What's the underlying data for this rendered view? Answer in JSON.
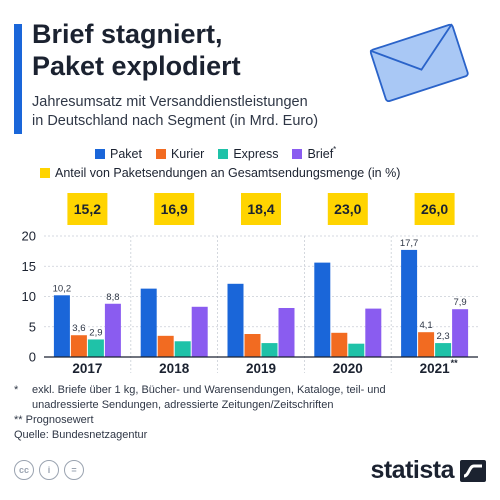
{
  "header": {
    "title_line1": "Brief stagniert,",
    "title_line2": "Paket explodiert",
    "subtitle_line1": "Jahresumsatz mit Versanddienstleistungen",
    "subtitle_line2": "in Deutschland nach Segment (in Mrd. Euro)"
  },
  "legend": {
    "items": [
      {
        "label": "Paket",
        "color": "#1a66d9"
      },
      {
        "label": "Kurier",
        "color": "#f26b21"
      },
      {
        "label": "Express",
        "color": "#1fc2a8"
      },
      {
        "label": "Brief",
        "sup": "*",
        "color": "#8a5cf0"
      }
    ],
    "share_label": "Anteil von Paketsendungen an Gesamtsendungsmenge (in %)",
    "share_color": "#ffd400"
  },
  "chart_data": {
    "type": "bar",
    "categories": [
      "2017",
      "2018",
      "2019",
      "2020",
      "2021"
    ],
    "category_marks": [
      "",
      "",
      "",
      "",
      "**"
    ],
    "series": [
      {
        "name": "Paket",
        "color": "#1a66d9",
        "values": [
          10.2,
          11.3,
          12.1,
          15.6,
          17.7
        ],
        "labels": [
          "10,2",
          "",
          "",
          "",
          "17,7"
        ]
      },
      {
        "name": "Kurier",
        "color": "#f26b21",
        "values": [
          3.6,
          3.5,
          3.8,
          4.0,
          4.1
        ],
        "labels": [
          "3,6",
          "",
          "",
          "",
          "4,1"
        ]
      },
      {
        "name": "Express",
        "color": "#1fc2a8",
        "values": [
          2.9,
          2.6,
          2.3,
          2.2,
          2.3
        ],
        "labels": [
          "2,9",
          "",
          "",
          "",
          "2,3"
        ]
      },
      {
        "name": "Brief",
        "color": "#8a5cf0",
        "values": [
          8.8,
          8.3,
          8.1,
          8.0,
          7.9
        ],
        "labels": [
          "8,8",
          "",
          "",
          "",
          "7,9"
        ]
      }
    ],
    "share": {
      "values": [
        15.2,
        16.9,
        18.4,
        23.0,
        26.0
      ],
      "labels": [
        "15,2",
        "16,9",
        "18,4",
        "23,0",
        "26,0"
      ]
    },
    "yticks": [
      "0",
      "5",
      "10",
      "15",
      "20"
    ],
    "ylim": [
      0,
      20
    ],
    "grid": true
  },
  "footnotes": [
    {
      "mark": "*",
      "line1": "exkl. Briefe über 1 kg, Bücher- und Warensendungen, Kataloge, teil- und",
      "line2": "unadressierte Sendungen, adressierte Zeitungen/Zeitschriften"
    },
    {
      "mark": "**",
      "line1": "Prognosewert"
    }
  ],
  "source": "Quelle: Bundesnetzagentur",
  "license_icons": [
    "cc",
    "i",
    "="
  ],
  "brand": "statista"
}
